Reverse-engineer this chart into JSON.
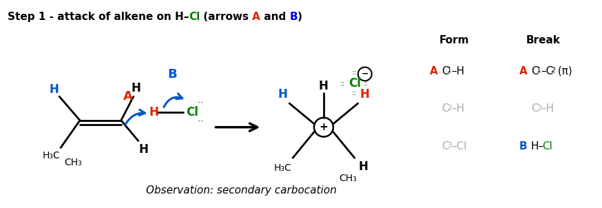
{
  "bg": "#ffffff",
  "title_segments": [
    {
      "t": "Step 1 - attack of alkene on H–",
      "c": "#000000",
      "b": true
    },
    {
      "t": "Cl",
      "c": "#008000",
      "b": true
    },
    {
      "t": " (arrows ",
      "c": "#000000",
      "b": true
    },
    {
      "t": "A",
      "c": "#dd2200",
      "b": true
    },
    {
      "t": " and ",
      "c": "#000000",
      "b": true
    },
    {
      "t": "B",
      "c": "#0000ee",
      "b": true
    },
    {
      "t": ")",
      "c": "#000000",
      "b": true
    }
  ],
  "observation": "Observation: secondary carbocation",
  "colors": {
    "black": "#000000",
    "red": "#dd2200",
    "blue": "#0055cc",
    "green": "#008000",
    "gray": "#aaaaaa"
  }
}
